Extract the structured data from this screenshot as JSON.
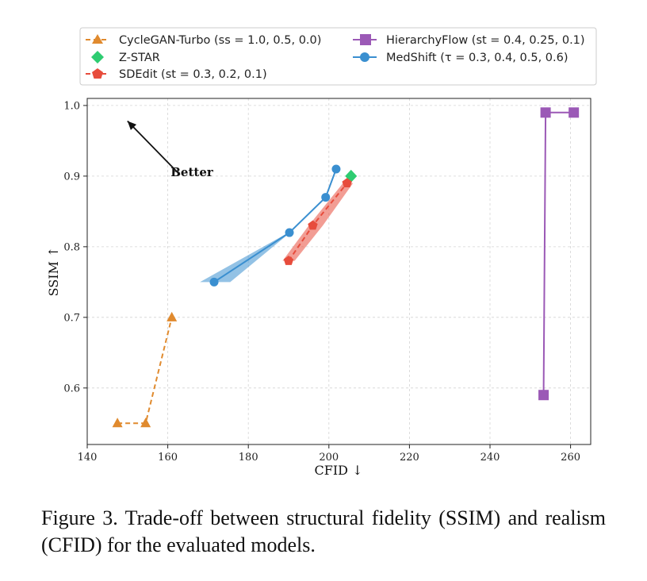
{
  "caption": {
    "text": "Figure 3.  Trade-off between structural fidelity (SSIM) and realism (CFID) for the evaluated models."
  },
  "chart_data": {
    "type": "line",
    "title": "",
    "xlabel": "CFID ↓",
    "ylabel": "SSIM ↑",
    "xlim": [
      140,
      265
    ],
    "ylim": [
      0.52,
      1.01
    ],
    "x_ticks": [
      140,
      160,
      180,
      200,
      220,
      240,
      260
    ],
    "y_ticks": [
      0.6,
      0.7,
      0.8,
      0.9,
      1.0
    ],
    "x_tick_labels": [
      "140",
      "160",
      "180",
      "200",
      "220",
      "240",
      "260"
    ],
    "y_tick_labels": [
      "0.6",
      "0.7",
      "0.8",
      "0.9",
      "1.0"
    ],
    "grid": true,
    "legend_position": "top, above plot",
    "annotation": {
      "text": "Better",
      "arrow_from": [
        163,
        0.902
      ],
      "arrow_to": [
        150,
        0.978
      ]
    },
    "series": [
      {
        "name": "CycleGAN-Turbo (ss = 1.0, 0.5, 0.0)",
        "color": "#e08a2e",
        "marker": "triangle",
        "line_style": "dashed",
        "x": [
          147.5,
          154.5,
          161.0
        ],
        "y": [
          0.55,
          0.55,
          0.7
        ]
      },
      {
        "name": "Z-STAR",
        "color": "#2ecc71",
        "marker": "diamond",
        "line_style": "none",
        "x": [
          205.5
        ],
        "y": [
          0.9
        ]
      },
      {
        "name": "SDEdit (st = 0.3, 0.2, 0.1)",
        "color": "#e74c3c",
        "marker": "pentagon",
        "line_style": "dashed",
        "x": [
          190.0,
          196.0,
          204.5
        ],
        "y": [
          0.78,
          0.83,
          0.89
        ],
        "band_low": [
          188.5,
          195.0,
          203.5
        ],
        "band_high": [
          191.5,
          198.5,
          206.0
        ]
      },
      {
        "name": "HierarchyFlow (st = 0.4, 0.25, 0.1)",
        "color": "#9b59b6",
        "marker": "square",
        "line_style": "solid",
        "x": [
          253.3,
          253.8,
          260.8
        ],
        "y": [
          0.59,
          0.99,
          0.99
        ]
      },
      {
        "name": "MedShift (τ = 0.3, 0.4, 0.5, 0.6)",
        "color": "#3a8fd0",
        "marker": "circle",
        "line_style": "solid",
        "x": [
          171.5,
          190.2,
          199.2,
          201.8
        ],
        "y": [
          0.75,
          0.82,
          0.87,
          0.91
        ],
        "band_low": [
          168.0,
          190.0,
          199.0,
          201.8
        ],
        "band_high": [
          175.5,
          190.4,
          199.4,
          201.8
        ]
      }
    ]
  }
}
